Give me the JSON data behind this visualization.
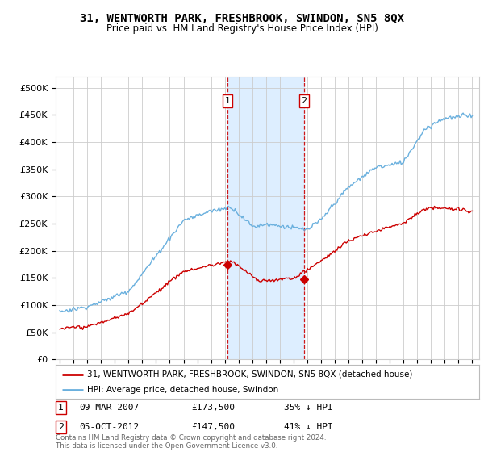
{
  "title": "31, WENTWORTH PARK, FRESHBROOK, SWINDON, SN5 8QX",
  "subtitle": "Price paid vs. HM Land Registry's House Price Index (HPI)",
  "ylabel_ticks": [
    "£0",
    "£50K",
    "£100K",
    "£150K",
    "£200K",
    "£250K",
    "£300K",
    "£350K",
    "£400K",
    "£450K",
    "£500K"
  ],
  "ytick_values": [
    0,
    50000,
    100000,
    150000,
    200000,
    250000,
    300000,
    350000,
    400000,
    450000,
    500000
  ],
  "ylim": [
    0,
    520000
  ],
  "xlim_start": 1994.7,
  "xlim_end": 2025.5,
  "sale1_year": 2007.19,
  "sale1_price": 173500,
  "sale1_label": "1",
  "sale1_date": "09-MAR-2007",
  "sale1_pct": "35% ↓ HPI",
  "sale2_year": 2012.76,
  "sale2_price": 147500,
  "sale2_label": "2",
  "sale2_date": "05-OCT-2012",
  "sale2_pct": "41% ↓ HPI",
  "hpi_color": "#6ab0de",
  "sale_color": "#cc0000",
  "marker_color": "#cc0000",
  "dashed_color": "#cc0000",
  "highlight_fill": "#ddeeff",
  "legend_house": "31, WENTWORTH PARK, FRESHBROOK, SWINDON, SN5 8QX (detached house)",
  "legend_hpi": "HPI: Average price, detached house, Swindon",
  "footer": "Contains HM Land Registry data © Crown copyright and database right 2024.\nThis data is licensed under the Open Government Licence v3.0.",
  "xtick_years": [
    1995,
    1996,
    1997,
    1998,
    1999,
    2000,
    2001,
    2002,
    2003,
    2004,
    2005,
    2006,
    2007,
    2008,
    2009,
    2010,
    2011,
    2012,
    2013,
    2014,
    2015,
    2016,
    2017,
    2018,
    2019,
    2020,
    2021,
    2022,
    2023,
    2024,
    2025
  ]
}
